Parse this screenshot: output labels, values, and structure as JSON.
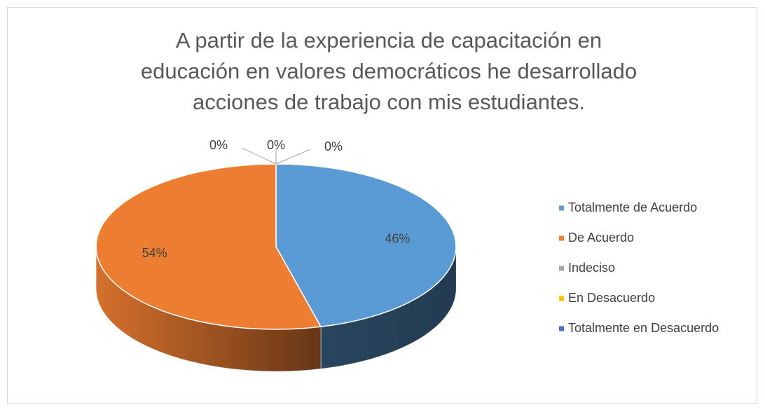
{
  "chart_data": {
    "type": "pie3d",
    "title": "A partir de la experiencia de capacitación en educación en valores democráticos he desarrollado acciones de trabajo con mis estudiantes.",
    "categories": [
      "Totalmente de Acuerdo",
      "De Acuerdo",
      "Indeciso",
      "En Desacuerdo",
      "Totalmente en Desacuerdo"
    ],
    "values": [
      46,
      54,
      0,
      0,
      0
    ],
    "value_labels": [
      "46%",
      "54%",
      "0%",
      "0%",
      "0%"
    ],
    "colors": [
      "#5b9bd5",
      "#ed7d31",
      "#a5a5a5",
      "#ffc000",
      "#4472c4"
    ],
    "legend": "right"
  }
}
